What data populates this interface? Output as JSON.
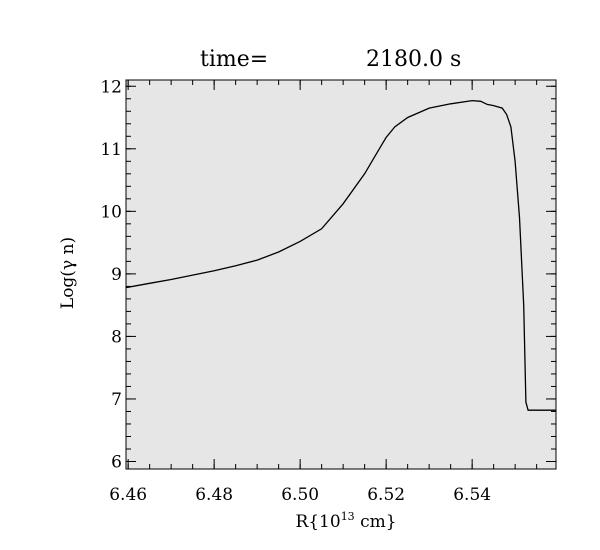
{
  "chart_data": {
    "type": "line",
    "title_prefix": "time=",
    "title_value": "2180.0 s",
    "xlabel": "R{10",
    "xlabel_sup": "13",
    "xlabel_suffix": " cm}",
    "ylabel": "Log(γ n)",
    "xlim": [
      6.4595,
      6.5595
    ],
    "ylim": [
      5.88,
      12.1
    ],
    "xticks": [
      {
        "value": 6.46,
        "label": "6.46"
      },
      {
        "value": 6.48,
        "label": "6.48"
      },
      {
        "value": 6.5,
        "label": "6.50"
      },
      {
        "value": 6.52,
        "label": "6.52"
      },
      {
        "value": 6.54,
        "label": "6.54"
      }
    ],
    "yticks": [
      {
        "value": 6,
        "label": "6"
      },
      {
        "value": 7,
        "label": "7"
      },
      {
        "value": 8,
        "label": "8"
      },
      {
        "value": 9,
        "label": "9"
      },
      {
        "value": 10,
        "label": "10"
      },
      {
        "value": 11,
        "label": "11"
      },
      {
        "value": 12,
        "label": "12"
      }
    ],
    "colors": {
      "plot_background": "#e6e6e6",
      "line": "#000000"
    },
    "grid": false,
    "series": [
      {
        "x": [
          6.4595,
          6.465,
          6.47,
          6.475,
          6.48,
          6.485,
          6.49,
          6.495,
          6.5,
          6.505,
          6.51,
          6.515,
          6.518,
          6.52,
          6.522,
          6.525,
          6.53,
          6.535,
          6.54,
          6.542,
          6.5435,
          6.545,
          6.547,
          6.548,
          6.549,
          6.55,
          6.551,
          6.552,
          6.5525,
          6.553,
          6.5595
        ],
        "y": [
          8.78,
          8.85,
          8.91,
          8.98,
          9.05,
          9.13,
          9.22,
          9.35,
          9.52,
          9.72,
          10.12,
          10.6,
          10.95,
          11.18,
          11.35,
          11.5,
          11.65,
          11.72,
          11.77,
          11.76,
          11.71,
          11.69,
          11.65,
          11.55,
          11.35,
          10.8,
          9.9,
          8.5,
          6.95,
          6.82,
          6.82
        ]
      }
    ]
  }
}
